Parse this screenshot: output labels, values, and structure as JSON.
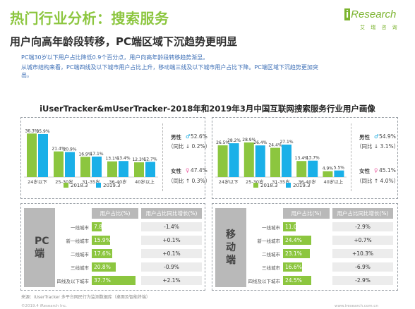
{
  "title": "热门行业分析：搜索服务",
  "logo": {
    "mark": "i",
    "name": "Research",
    "tagline": "艾 瑞 咨 询"
  },
  "subtitle": "用户向高年龄段转移，PC端区域下沉趋势更明显",
  "notes": [
    "PC端30岁以下用户占比降低0.9个百分点，用户向高年龄段转移趋势渐显。",
    "从城市结构来看，PC端四线及以下城市用户占比上升，移动端三线及以下城市用户占比下降。PC端区域下沉趋势更加突",
    "出。"
  ],
  "chart_title": "iUserTracker&mUserTracker-2018年和2019年3月中国互联网搜索服务行业用户画像",
  "colors": {
    "series_2018": "#8cc63f",
    "series_2019": "#1ab0e8",
    "accent": "#8cc63f",
    "male": "#00a0dc",
    "female": "#ea5b9f"
  },
  "chart_data": [
    {
      "type": "bar",
      "categories": [
        "24岁以下",
        "25-30岁",
        "31-35岁",
        "36-40岁",
        "40岁以上"
      ],
      "series": [
        {
          "name": "2018.3",
          "values": [
            36.3,
            21.4,
            16.9,
            13.1,
            12.3
          ]
        },
        {
          "name": "2019.3",
          "values": [
            35.9,
            20.9,
            17.1,
            13.4,
            12.7
          ]
        }
      ],
      "labels": [
        [
          "36.3%",
          "21.4%",
          "16.9%",
          "13.1%",
          "12.3%"
        ],
        [
          "35.9%",
          "20.9%",
          "17.1%",
          "13.4%",
          "12.7%"
        ]
      ],
      "ylim": [
        0,
        40
      ],
      "legend": "bottom"
    },
    {
      "type": "bar",
      "categories": [
        "24岁以下",
        "25-30岁",
        "31-35岁",
        "36-40岁",
        "40岁以上"
      ],
      "series": [
        {
          "name": "2018.3",
          "values": [
            26.5,
            28.9,
            24.4,
            13.4,
            4.9
          ]
        },
        {
          "name": "2019.3",
          "values": [
            28.2,
            26.4,
            27.1,
            13.7,
            5.5
          ]
        }
      ],
      "labels": [
        [
          "26.5%",
          "28.9%",
          "24.4%",
          "13.4%",
          "4.9%"
        ],
        [
          "28.2%",
          "26.4%",
          "27.1%",
          "13.7%",
          "5.5%"
        ]
      ],
      "ylim": [
        0,
        40
      ],
      "legend": "bottom"
    },
    {
      "type": "table",
      "segment": "PC端",
      "columns": [
        "用户占比(%)",
        "用户占比同比增长(%)"
      ],
      "rows": [
        "一线城市",
        "新一线城市",
        "二线城市",
        "三线城市",
        "四线及以下城市"
      ],
      "share": [
        7.8,
        15.9,
        17.6,
        20.8,
        37.7
      ],
      "share_labels": [
        "7.8%",
        "15.9%",
        "17.6%",
        "20.8%",
        "37.7%"
      ],
      "growth": [
        "-1.4%",
        "+0.1%",
        "+0.1%",
        "-0.9%",
        "+2.1%"
      ]
    },
    {
      "type": "table",
      "segment": "移动端",
      "columns": [
        "用户占比(%)",
        "用户占比同比增长(%)"
      ],
      "rows": [
        "一线城市",
        "新一线城市",
        "二线城市",
        "三线城市",
        "四线及以下城市"
      ],
      "share": [
        11.0,
        24.4,
        23.1,
        16.6,
        24.5
      ],
      "share_labels": [
        "11.0%",
        "24.4%",
        "23.1%",
        "16.6%",
        "24.5%"
      ],
      "growth": [
        "-2.9%",
        "+0.7%",
        "+10.3%",
        "-6.9%",
        "-2.9%"
      ]
    }
  ],
  "gender": [
    {
      "male": {
        "label": "男性",
        "value": "52.6%",
        "change": "（同比 ↓ 0.2%）"
      },
      "female": {
        "label": "女性",
        "value": "47.4%",
        "change": "（同比 ↑ 0.3%）"
      }
    },
    {
      "male": {
        "label": "男性",
        "value": "54.9%",
        "change": "（同比 ↓ 3.1%）"
      },
      "female": {
        "label": "女性",
        "value": "45.1%",
        "change": "（同比 ↑ 4.0%）"
      }
    }
  ],
  "table_titles": [
    "PC端",
    "移动端"
  ],
  "footer": {
    "source": "来源：iUserTracker 多平台网民行为监测数据库（桌面及智能终端）",
    "copyright": "©2019.4 iResearch Inc.",
    "url": "www.iresearch.com.cn"
  }
}
